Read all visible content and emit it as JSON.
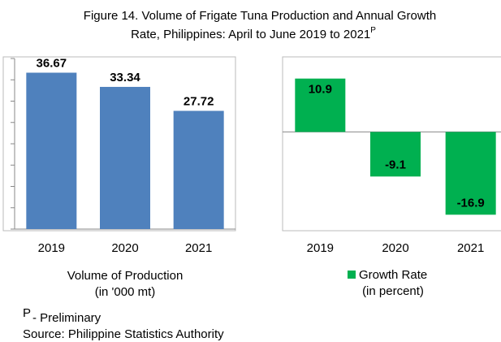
{
  "title": {
    "lines": [
      "Figure 14. Volume of Frigate Tuna Production and  Annual Growth",
      "Rate, Philippines: April to June 2019 to 2021"
    ],
    "superscript": "P"
  },
  "chart_data": [
    {
      "type": "bar",
      "categories": [
        "2019",
        "2020",
        "2021"
      ],
      "values": [
        36.67,
        33.34,
        27.72
      ],
      "color": "#4f81bd",
      "ylim": [
        0,
        40
      ],
      "yticks": [
        0,
        5,
        10,
        15,
        20,
        25,
        30,
        35,
        40
      ],
      "x_label": [
        "Volume of Production",
        "(in '000 mt)"
      ]
    },
    {
      "type": "bar",
      "categories": [
        "2019",
        "2020",
        "2021"
      ],
      "series": [
        {
          "name": "Growth Rate",
          "color": "#00b050",
          "values": [
            10.9,
            -9.1,
            -16.9
          ]
        }
      ],
      "ylim": [
        -20,
        15
      ],
      "legend_note": "(in percent)"
    }
  ],
  "notes": {
    "marker": "P",
    "preliminary": "- Preliminary",
    "source": "Source: Philippine Statistics Authority"
  }
}
